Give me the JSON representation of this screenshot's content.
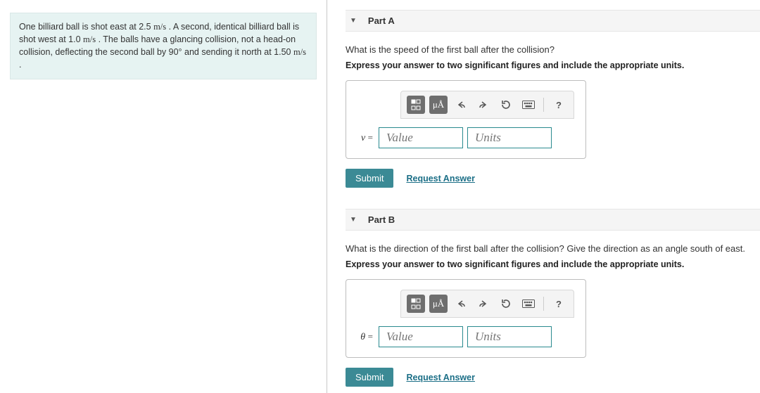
{
  "problem": {
    "text_html": "One billiard ball is shot east at 2.5 <span class='unit'>m/s</span> . A second, identical billiard ball is shot west at 1.0 <span class='unit'>m/s</span> . The balls have a glancing collision, not a head-on collision, deflecting the second ball by 90° and sending it north at 1.50 <span class='unit'>m/s</span> ."
  },
  "parts": {
    "A": {
      "title": "Part A",
      "prompt": "What is the speed of the first ball after the collision?",
      "instruction": "Express your answer to two significant figures and include the appropriate units.",
      "variable": "v",
      "value_placeholder": "Value",
      "units_placeholder": "Units",
      "submit_label": "Submit",
      "request_label": "Request Answer"
    },
    "B": {
      "title": "Part B",
      "prompt": "What is the direction of the first ball after the collision? Give the direction as an angle south of east.",
      "instruction": "Express your answer to two significant figures and include the appropriate units.",
      "variable": "θ",
      "value_placeholder": "Value",
      "units_placeholder": "Units",
      "submit_label": "Submit",
      "request_label": "Request Answer"
    }
  },
  "colors": {
    "problem_bg": "#e6f3f2",
    "submit_bg": "#3b8a95",
    "link": "#1c6f87",
    "input_border": "#2a8a8f"
  }
}
